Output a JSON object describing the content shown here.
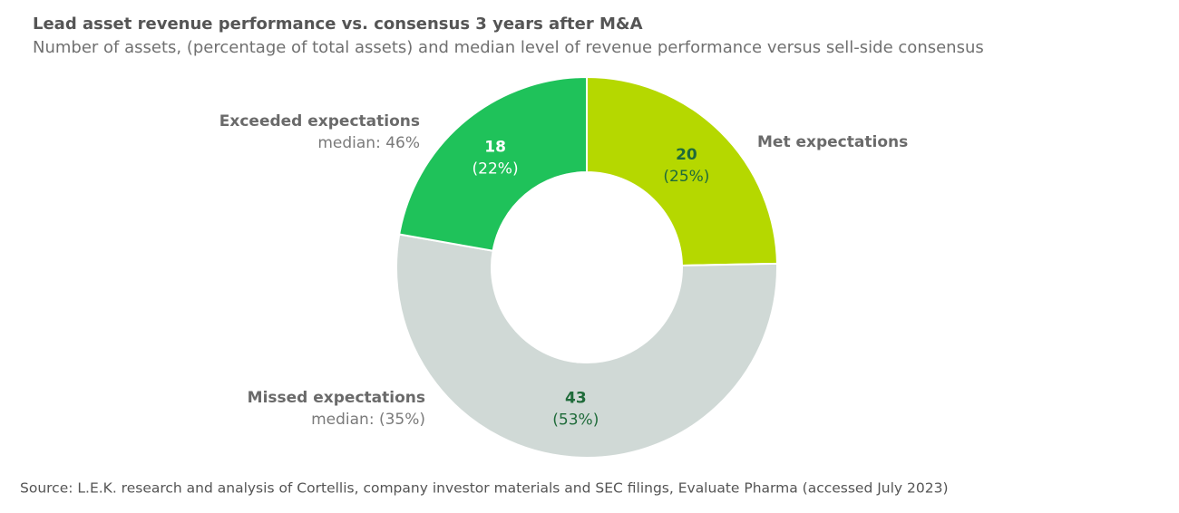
{
  "chart_data": {
    "type": "donut",
    "title": "Lead asset revenue performance vs. consensus 3 years after M&A",
    "subtitle": "Number of assets, (percentage of total assets) and median level of revenue performance versus sell-side consensus",
    "source": "Source: L.E.K. research and analysis of Cortellis, company investor materials and SEC filings, Evaluate Pharma (accessed July 2023)",
    "categories": [
      "Met expectations",
      "Missed expectations",
      "Exceeded expectations"
    ],
    "values": [
      20,
      43,
      18
    ],
    "share_labels": [
      "(25%)",
      "(53%)",
      "(22%)"
    ],
    "medians": [
      null,
      "median: (35%)",
      "median: 46%"
    ],
    "colors": [
      "#b5d800",
      "#d0d9d6",
      "#1fc25a"
    ]
  }
}
